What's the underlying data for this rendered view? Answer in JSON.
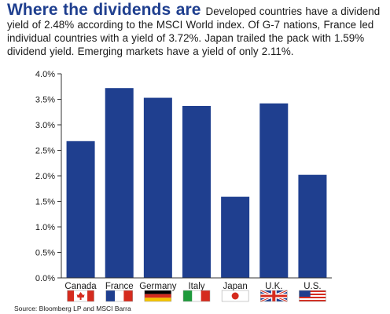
{
  "header": {
    "title": "Where the dividends are",
    "description": "Developed countries have a dividend yield of 2.48% according to the MSCI World index. Of G-7 nations, France led individual countries with a yield of 3.72%. Japan trailed the pack with 1.59% dividend yield. Emerging markets have a yield of only 2.11%."
  },
  "chart_data": {
    "type": "bar",
    "categories": [
      "Canada",
      "France",
      "Germany",
      "Italy",
      "Japan",
      "U.K.",
      "U.S."
    ],
    "values": [
      2.68,
      3.72,
      3.53,
      3.37,
      1.59,
      3.42,
      2.02
    ],
    "title": "",
    "xlabel": "",
    "ylabel": "",
    "ylim": [
      0,
      4.0
    ],
    "yticks": [
      "0.0%",
      "0.5%",
      "1.0%",
      "1.5%",
      "2.0%",
      "2.5%",
      "3.0%",
      "3.5%",
      "4.0%"
    ],
    "flags": [
      "canada-flag-icon",
      "france-flag-icon",
      "germany-flag-icon",
      "italy-flag-icon",
      "japan-flag-icon",
      "uk-flag-icon",
      "us-flag-icon"
    ],
    "bar_color": "#1f3f8f",
    "grid": false
  },
  "source": "Source: Bloomberg LP and MSCI Barra"
}
